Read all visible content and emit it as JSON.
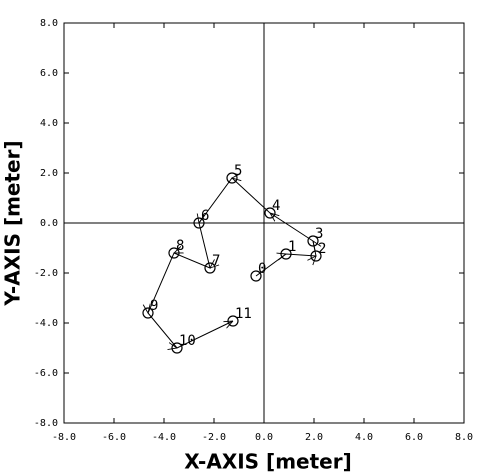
{
  "chart_data": {
    "type": "line",
    "x_label": "X-AXIS [meter]",
    "y_label": "Y-AXIS [meter]",
    "x": [
      -0.32,
      0.88,
      2.08,
      1.96,
      0.24,
      -1.28,
      -2.6,
      -2.16,
      -3.6,
      -4.64,
      -3.48,
      -1.24
    ],
    "values": [
      -2.12,
      -1.24,
      -1.32,
      -0.72,
      0.4,
      1.8,
      0,
      -1.8,
      -1.2,
      -3.6,
      -5,
      -3.92
    ],
    "point_labels": [
      "0",
      "1",
      "2",
      "3",
      "4",
      "5",
      "6",
      "7",
      "8",
      "9",
      "10",
      "11"
    ],
    "color": "#000000",
    "xlim": [
      -8,
      8
    ],
    "ylim": [
      -8,
      8
    ],
    "xticks": [
      {
        "value": -8,
        "label": "-8.0"
      },
      {
        "value": -6,
        "label": "-6.0"
      },
      {
        "value": -4,
        "label": "-4.0"
      },
      {
        "value": -2,
        "label": "-2.0"
      },
      {
        "value": 0,
        "label": "0.0"
      },
      {
        "value": 2,
        "label": "2.0"
      },
      {
        "value": 4,
        "label": "4.0"
      },
      {
        "value": 6,
        "label": "6.0"
      },
      {
        "value": 8,
        "label": "8.0"
      }
    ],
    "yticks": [
      {
        "value": -8,
        "label": "-8.0"
      },
      {
        "value": -6,
        "label": "-6.0"
      },
      {
        "value": -4,
        "label": "-4.0"
      },
      {
        "value": -2,
        "label": "-2.0"
      },
      {
        "value": 0,
        "label": "0.0"
      },
      {
        "value": 2,
        "label": "2.0"
      },
      {
        "value": 4,
        "label": "4.0"
      },
      {
        "value": 6,
        "label": "6.0"
      },
      {
        "value": 8,
        "label": "8.0"
      }
    ]
  }
}
